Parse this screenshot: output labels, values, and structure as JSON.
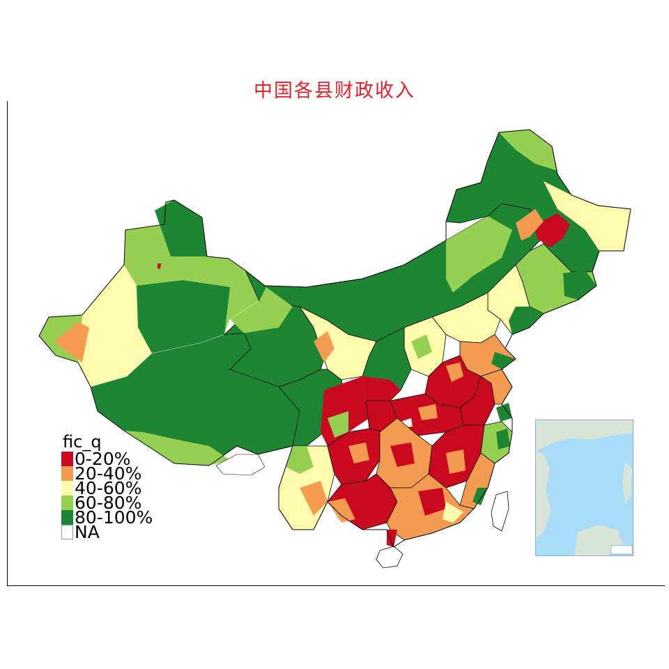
{
  "map": {
    "title": "中国各县财政收入",
    "title_color": "#e8202a",
    "legend": {
      "title": "fic_q",
      "entries": [
        {
          "label": "0-20%",
          "color": "#c8091e"
        },
        {
          "label": "20-40%",
          "color": "#f49b52"
        },
        {
          "label": "40-60%",
          "color": "#fefbad"
        },
        {
          "label": "60-80%",
          "color": "#95d053"
        },
        {
          "label": "80-100%",
          "color": "#1e8532"
        },
        {
          "label": "NA",
          "color": "#ffffff"
        }
      ]
    },
    "inset": {
      "water_color": "#a9dcf6",
      "land_color": "#d8e4d8"
    }
  }
}
